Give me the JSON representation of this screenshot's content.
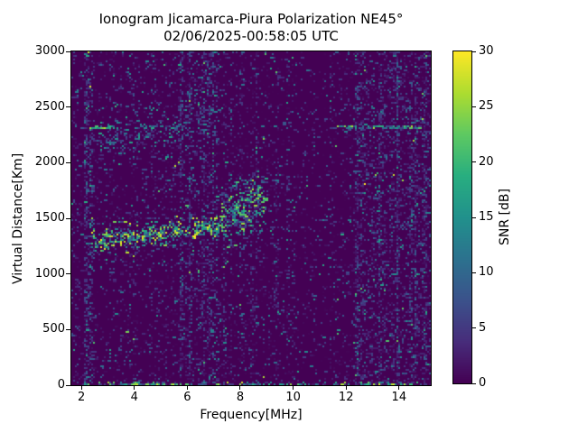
{
  "chart_data": {
    "type": "heatmap",
    "title": "Ionogram Jicamarca-Piura Polarization NE45°",
    "subtitle": "02/06/2025-00:58:05 UTC",
    "xlabel": "Frequency[MHz]",
    "ylabel": "Virtual Distance[Km]",
    "xlim": [
      1.62,
      15.2
    ],
    "ylim": [
      0,
      3000
    ],
    "xticks": [
      2,
      4,
      6,
      8,
      10,
      12,
      14
    ],
    "yticks": [
      0,
      500,
      1000,
      1500,
      2000,
      2500,
      3000
    ],
    "grid": false,
    "colorbar": {
      "label": "SNR [dB]",
      "ticks": [
        0,
        5,
        10,
        15,
        20,
        25,
        30
      ],
      "min": 0,
      "max": 30,
      "colormap": "viridis"
    },
    "colormap_stops": [
      "#440154",
      "#472d7b",
      "#3b528b",
      "#2c728e",
      "#21918c",
      "#28ae80",
      "#5ec962",
      "#addc30",
      "#fde725"
    ],
    "background_snr_db": 0,
    "noise": {
      "seed": 13,
      "base_density": 0.21,
      "snr_mean_db": 4.0,
      "hot_column_chance": 0.05
    },
    "noise_bands": [
      {
        "name": "quiet-below-2MHz",
        "f": [
          1.62,
          2.08
        ],
        "density": 0.75,
        "snr_add": 0
      },
      {
        "name": "rfi-2.2MHz",
        "f": [
          2.08,
          2.45
        ],
        "density": 3.0,
        "snr_add": 2
      },
      {
        "name": "rfi-6MHz",
        "f": [
          5.7,
          6.25
        ],
        "density": 1.9,
        "snr_add": 1
      },
      {
        "name": "rfi-6.7MHz",
        "f": [
          6.3,
          7.15
        ],
        "density": 1.8,
        "snr_add": 1
      },
      {
        "name": "quiet-9.8MHz",
        "f": [
          9.6,
          10.15
        ],
        "density": 0.85,
        "snr_add": 0
      },
      {
        "name": "quiet-10.7MHz",
        "f": [
          10.15,
          11.4
        ],
        "density": 0.5,
        "snr_add": 0
      },
      {
        "name": "rfi-12.8-15MHz",
        "f": [
          12.3,
          15.2
        ],
        "density": 1.9,
        "snr_add": 1
      }
    ],
    "features": [
      {
        "name": "f-region-trace",
        "f": [
          2.35,
          6.02
        ],
        "alt": [
          1280,
          1395
        ],
        "sigma": 60,
        "density": 0.62,
        "snr": [
          6,
          30
        ],
        "skew": 1.3
      },
      {
        "name": "f-region-trace-bright",
        "f": [
          6.22,
          7.35
        ],
        "alt": [
          1400,
          1445
        ],
        "sigma": 55,
        "density": 0.7,
        "snr": [
          8,
          30
        ],
        "skew": 1.1
      },
      {
        "name": "spread-f-cloud",
        "f": [
          7.35,
          9.05
        ],
        "alt": [
          1480,
          1680
        ],
        "sigma": 150,
        "density": 0.4,
        "snr": [
          5,
          26
        ],
        "skew": 1.6
      },
      {
        "name": "second-hop-echo",
        "f": [
          2.5,
          6.0
        ],
        "alt": [
          2220,
          2320
        ],
        "sigma": 95,
        "density": 0.27,
        "snr": [
          3,
          18
        ],
        "skew": 1.5
      },
      {
        "name": "upper-diffuse-patch",
        "f": [
          6.25,
          7.25
        ],
        "alt": [
          2450,
          2650
        ],
        "sigma": 150,
        "density": 0.17,
        "snr": [
          3,
          15
        ],
        "skew": 1.5
      },
      {
        "name": "rfi-line-2300km-right",
        "f": [
          11.7,
          14.95
        ],
        "alt": [
          2318,
          2318
        ],
        "sigma": 10,
        "density": 0.75,
        "snr": [
          6,
          26
        ],
        "skew": 1.6
      },
      {
        "name": "rfi-dash-2300km-left",
        "f": [
          2.25,
          3.35
        ],
        "alt": [
          2312,
          2312
        ],
        "sigma": 7,
        "density": 0.9,
        "snr": [
          15,
          30
        ],
        "skew": 1.0
      },
      {
        "name": "zero-range-line",
        "f": [
          1.62,
          15.2
        ],
        "alt": [
          10,
          10
        ],
        "sigma": 10,
        "density": 0.5,
        "snr": [
          5,
          28
        ],
        "skew": 1.8
      }
    ]
  }
}
